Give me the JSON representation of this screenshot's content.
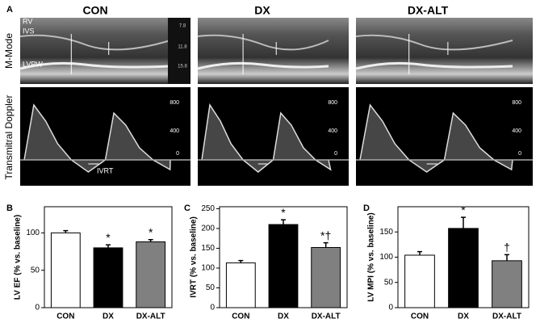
{
  "figure": {
    "panel": "A",
    "columns": [
      "CON",
      "DX",
      "DX-ALT"
    ],
    "row_labels": [
      "M-Mode",
      "Transmitral Doppler"
    ],
    "mmode_labels": [
      "RV",
      "IVS",
      "LVPW"
    ],
    "mmode_scale": [
      "7.8",
      "11.8",
      "15.8"
    ],
    "doppler_scale": [
      "800",
      "400",
      "0"
    ],
    "doppler_label": "IVRT"
  },
  "chart_data": [
    {
      "type": "bar",
      "panel": "B",
      "y_label": "LV EF (% vs. baseline)",
      "categories": [
        "CON",
        "DX",
        "DX-ALT"
      ],
      "values": [
        100,
        80,
        88
      ],
      "errors": [
        3,
        4,
        3
      ],
      "annotations": [
        null,
        "*",
        "*"
      ],
      "colors": [
        "#ffffff",
        "#000000",
        "#808080"
      ],
      "ylim": [
        0,
        135
      ],
      "yticks": [
        0,
        50,
        100
      ]
    },
    {
      "type": "bar",
      "panel": "C",
      "y_label": "IVRT (% vs. baseline)",
      "categories": [
        "CON",
        "DX",
        "DX-ALT"
      ],
      "values": [
        113,
        210,
        152
      ],
      "errors": [
        6,
        12,
        12
      ],
      "annotations": [
        null,
        "*",
        "*†"
      ],
      "colors": [
        "#ffffff",
        "#000000",
        "#808080"
      ],
      "ylim": [
        0,
        255
      ],
      "yticks": [
        0,
        50,
        100,
        150,
        200,
        250
      ]
    },
    {
      "type": "bar",
      "panel": "D",
      "y_label": "LV MPI (% vs. baseline)",
      "categories": [
        "CON",
        "DX",
        "DX-ALT"
      ],
      "values": [
        104,
        157,
        93
      ],
      "errors": [
        7,
        22,
        12
      ],
      "annotations": [
        null,
        "*",
        "†"
      ],
      "colors": [
        "#ffffff",
        "#000000",
        "#808080"
      ],
      "ylim": [
        0,
        200
      ],
      "yticks": [
        0,
        50,
        100,
        150
      ]
    }
  ]
}
